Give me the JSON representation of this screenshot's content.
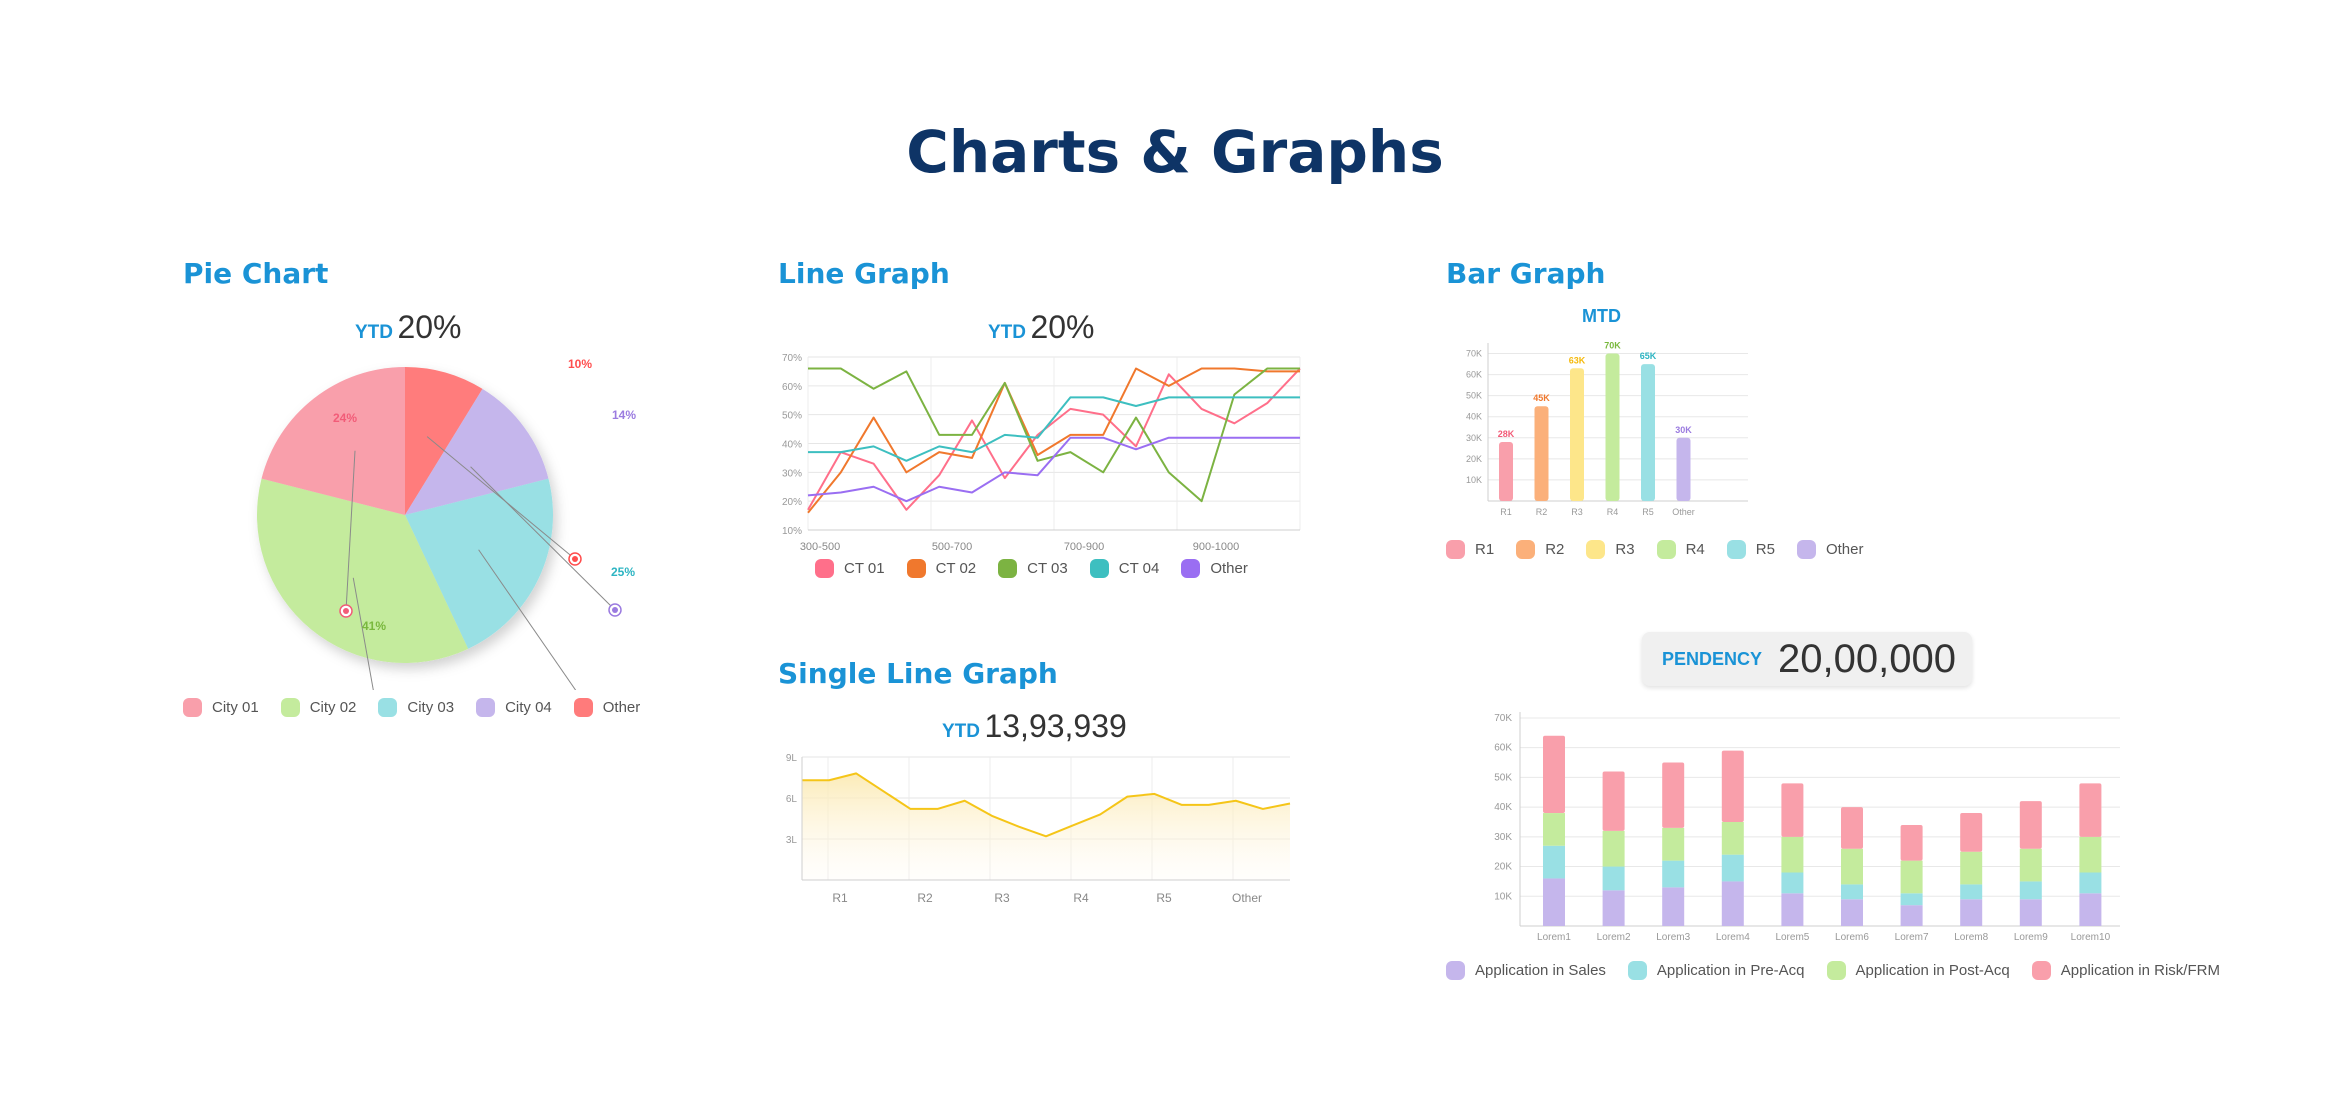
{
  "page": {
    "title": "Charts & Graphs"
  },
  "colors": {
    "title": "#0e3466",
    "section": "#1a93d6"
  },
  "pie": {
    "title": "Pie Chart",
    "kpi_label": "YTD",
    "kpi_value": "20%"
  },
  "line": {
    "title": "Line Graph",
    "kpi_label": "YTD",
    "kpi_value": "20%"
  },
  "single": {
    "title": "Single Line Graph",
    "kpi_label": "YTD",
    "kpi_value": "13,93,939"
  },
  "bar": {
    "title": "Bar Graph",
    "subtitle": "MTD"
  },
  "pendency": {
    "label": "PENDENCY",
    "value": "20,00,000"
  },
  "chart_data": [
    {
      "id": "pie",
      "type": "pie",
      "slices": [
        {
          "name": "Other",
          "value": 10,
          "label": "10%",
          "color": "#ff7b7b"
        },
        {
          "name": "City 04",
          "value": 14,
          "label": "14%",
          "color": "#c5b6ec"
        },
        {
          "name": "City 03",
          "value": 25,
          "label": "25%",
          "color": "#99e0e4"
        },
        {
          "name": "City 02",
          "value": 41,
          "label": "41%",
          "color": "#c4eb9d"
        },
        {
          "name": "City 01",
          "value": 24,
          "label": "24%",
          "color": "#f99fab"
        }
      ],
      "legend": [
        {
          "name": "City 01",
          "color": "#f99fab"
        },
        {
          "name": "City 02",
          "color": "#c4eb9d"
        },
        {
          "name": "City 03",
          "color": "#99e0e4"
        },
        {
          "name": "City 04",
          "color": "#c5b6ec"
        },
        {
          "name": "Other",
          "color": "#ff7b7b"
        }
      ],
      "label_colors": {
        "Other": "#ff4d4d",
        "City 04": "#9b7be0",
        "City 03": "#2cb4c2",
        "City 02": "#79b83d",
        "City 01": "#f25c78"
      }
    },
    {
      "id": "line",
      "type": "line",
      "y_ticks": [
        "10%",
        "20%",
        "30%",
        "40%",
        "50%",
        "60%",
        "70%"
      ],
      "ylim": [
        10,
        70
      ],
      "x_tick_labels": [
        "300-500",
        "500-700",
        "700-900",
        "900-1000"
      ],
      "x_count": 16,
      "series": [
        {
          "name": "CT 01",
          "color": "#ff6f8a",
          "values": [
            17,
            37,
            33,
            17,
            29,
            48,
            28,
            43,
            52,
            50,
            39,
            64,
            52,
            47,
            54,
            66
          ]
        },
        {
          "name": "CT 02",
          "color": "#f0782d",
          "values": [
            16,
            30,
            49,
            30,
            37,
            35,
            61,
            36,
            43,
            43,
            66,
            60,
            66,
            66,
            65,
            65
          ]
        },
        {
          "name": "CT 03",
          "color": "#7cb342",
          "values": [
            66,
            66,
            59,
            65,
            43,
            43,
            61,
            34,
            37,
            30,
            49,
            30,
            20,
            57,
            66,
            66
          ]
        },
        {
          "name": "CT 04",
          "color": "#3dbfc0",
          "values": [
            37,
            37,
            39,
            34,
            39,
            37,
            43,
            42,
            56,
            56,
            53,
            56,
            56,
            56,
            56,
            56
          ]
        },
        {
          "name": "Other",
          "color": "#9a6ef2",
          "values": [
            22,
            23,
            25,
            20,
            25,
            23,
            30,
            29,
            42,
            42,
            38,
            42,
            42,
            42,
            42,
            42
          ]
        }
      ]
    },
    {
      "id": "single",
      "type": "area",
      "y_ticks": [
        "3L",
        "6L",
        "9L"
      ],
      "ylim": [
        0,
        9
      ],
      "x_tick_labels": [
        "R1",
        "R2",
        "R3",
        "R4",
        "R5",
        "Other"
      ],
      "series": [
        {
          "name": "",
          "color": "#f5c518",
          "values": [
            7.3,
            7.3,
            7.8,
            6.5,
            5.2,
            5.2,
            5.8,
            4.7,
            3.9,
            3.2,
            4.0,
            4.8,
            6.1,
            6.3,
            5.5,
            5.5,
            5.8,
            5.2,
            5.6
          ]
        }
      ]
    },
    {
      "id": "bar",
      "type": "bar",
      "categories": [
        "R1",
        "R2",
        "R3",
        "R4",
        "R5",
        "Other"
      ],
      "values": [
        28,
        45,
        63,
        70,
        65,
        30
      ],
      "data_labels": [
        "28K",
        "45K",
        "63K",
        "70K",
        "65K",
        "30K"
      ],
      "colors": [
        "#f99fab",
        "#fbb07a",
        "#fde68a",
        "#c4eb9d",
        "#99e0e4",
        "#c5b6ec"
      ],
      "label_colors": [
        "#f25c78",
        "#f0782d",
        "#f5b90a",
        "#79b83d",
        "#2cb4c2",
        "#9b7be0"
      ],
      "y_ticks": [
        "10K",
        "20K",
        "30K",
        "40K",
        "50K",
        "60K",
        "70K"
      ],
      "ylim": [
        0,
        75
      ],
      "legend": [
        {
          "name": "R1",
          "color": "#f99fab"
        },
        {
          "name": "R2",
          "color": "#fbb07a"
        },
        {
          "name": "R3",
          "color": "#fde68a"
        },
        {
          "name": "R4",
          "color": "#c4eb9d"
        },
        {
          "name": "R5",
          "color": "#99e0e4"
        },
        {
          "name": "Other",
          "color": "#c5b6ec"
        }
      ]
    },
    {
      "id": "stacked",
      "type": "bar",
      "stacked": true,
      "categories": [
        "Lorem1",
        "Lorem2",
        "Lorem3",
        "Lorem4",
        "Lorem5",
        "Lorem6",
        "Lorem7",
        "Lorem8",
        "Lorem9",
        "Lorem10"
      ],
      "y_ticks": [
        "10K",
        "20K",
        "30K",
        "40K",
        "50K",
        "60K",
        "70K"
      ],
      "ylim": [
        0,
        72
      ],
      "series": [
        {
          "name": "Application in Sales",
          "color": "#c5b6ec",
          "values": [
            16,
            12,
            13,
            15,
            11,
            9,
            7,
            9,
            9,
            11
          ]
        },
        {
          "name": "Application in Pre-Acq",
          "color": "#99e0e4",
          "values": [
            11,
            8,
            9,
            9,
            7,
            5,
            4,
            5,
            6,
            7
          ]
        },
        {
          "name": "Application in Post-Acq",
          "color": "#c4eb9d",
          "values": [
            11,
            12,
            11,
            11,
            12,
            12,
            11,
            11,
            11,
            12
          ]
        },
        {
          "name": "Application in Risk/FRM",
          "color": "#f99fab",
          "values": [
            26,
            20,
            22,
            24,
            18,
            14,
            12,
            13,
            16,
            18
          ]
        }
      ]
    }
  ]
}
